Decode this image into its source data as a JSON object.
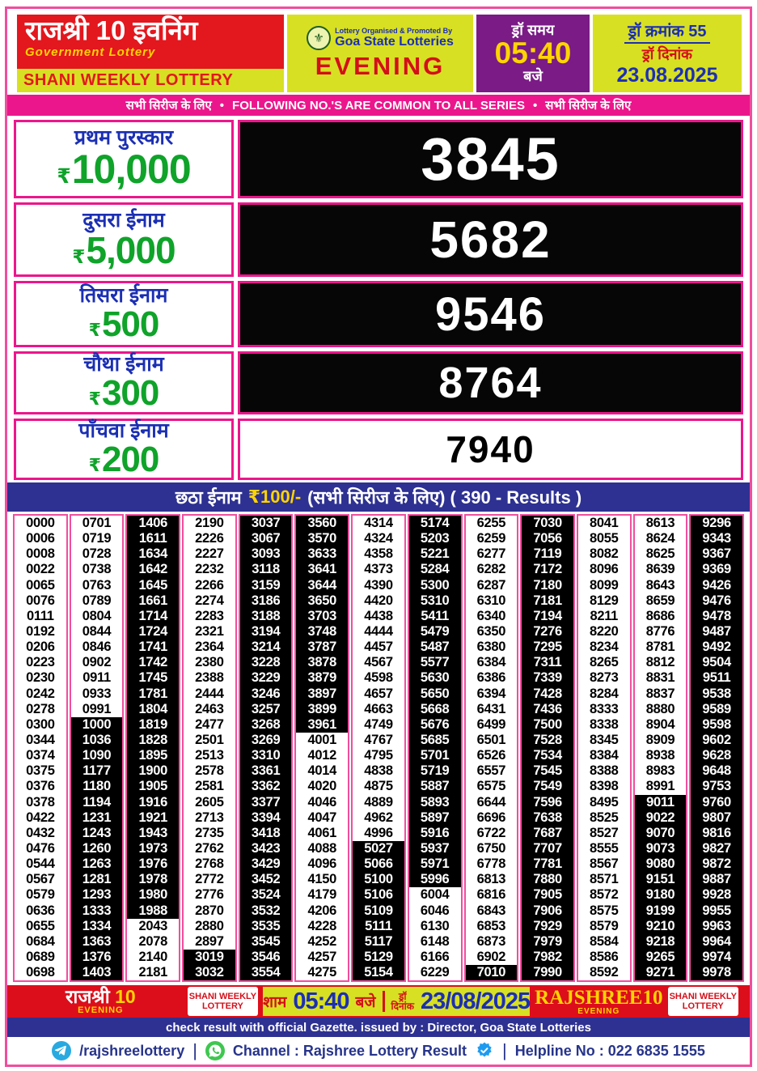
{
  "header": {
    "title": "राजश्री 10 इवनिंग",
    "subtitle": "Government Lottery",
    "weekly": "SHANI WEEKLY LOTTERY",
    "organiser_line1": "Lottery Organised & Promoted By",
    "organiser_line2": "Goa State Lotteries",
    "session": "EVENING",
    "draw_time_label": "ड्रॉ समय",
    "draw_time": "05:40",
    "draw_time_suffix": "बजे",
    "draw_no_line": "ड्रॉ क्रमांक 55",
    "draw_date_label": "ड्रॉ दिनांक",
    "draw_date": "23.08.2025"
  },
  "common_banner": {
    "left": "सभी सिरीज के लिए",
    "bullet": "•",
    "center": "FOLLOWING NO.'S ARE COMMON TO ALL SERIES",
    "right": "सभी सिरीज के लिए"
  },
  "prizes": [
    {
      "label": "प्रथम पुरस्कार",
      "currency": "₹",
      "amount": "10,000",
      "number": "3845"
    },
    {
      "label": "दुसरा ईनाम",
      "currency": "₹",
      "amount": "5,000",
      "number": "5682"
    },
    {
      "label": "तिसरा ईनाम",
      "currency": "₹",
      "amount": "500",
      "number": "9546"
    },
    {
      "label": "चौथा ईनाम",
      "currency": "₹",
      "amount": "300",
      "number": "8764"
    },
    {
      "label": "पाँचवा ईनाम",
      "currency": "₹",
      "amount": "200",
      "number": "7940"
    }
  ],
  "sixth_prize": {
    "label": "छठा ईनाम",
    "amount": "₹100/-",
    "note": "(सभी सिरीज के लिए) ( 390 - Results )"
  },
  "results_grid": {
    "columns": [
      [
        "0000",
        "0006",
        "0008",
        "0022",
        "0065",
        "0076",
        "0111",
        "0192",
        "0206",
        "0223",
        "0230",
        "0242",
        "0278",
        "0300",
        "0344",
        "0374",
        "0375",
        "0376",
        "0378",
        "0422",
        "0432",
        "0476",
        "0544",
        "0567",
        "0579",
        "0636",
        "0655",
        "0684",
        "0689",
        "0698"
      ],
      [
        "0701",
        "0719",
        "0728",
        "0738",
        "0763",
        "0789",
        "0804",
        "0844",
        "0846",
        "0902",
        "0911",
        "0933",
        "0991",
        "1000",
        "1036",
        "1090",
        "1177",
        "1180",
        "1194",
        "1231",
        "1243",
        "1260",
        "1263",
        "1281",
        "1293",
        "1333",
        "1334",
        "1363",
        "1376",
        "1403"
      ],
      [
        "1406",
        "1611",
        "1634",
        "1642",
        "1645",
        "1661",
        "1714",
        "1724",
        "1741",
        "1742",
        "1745",
        "1781",
        "1804",
        "1819",
        "1828",
        "1895",
        "1900",
        "1905",
        "1916",
        "1921",
        "1943",
        "1973",
        "1976",
        "1978",
        "1980",
        "1988",
        "2043",
        "2078",
        "2140",
        "2181"
      ],
      [
        "2190",
        "2226",
        "2227",
        "2232",
        "2266",
        "2274",
        "2283",
        "2321",
        "2364",
        "2380",
        "2388",
        "2444",
        "2463",
        "2477",
        "2501",
        "2513",
        "2578",
        "2581",
        "2605",
        "2713",
        "2735",
        "2762",
        "2768",
        "2772",
        "2776",
        "2870",
        "2880",
        "2897",
        "3019",
        "3032"
      ],
      [
        "3037",
        "3067",
        "3093",
        "3118",
        "3159",
        "3186",
        "3188",
        "3194",
        "3214",
        "3228",
        "3229",
        "3246",
        "3257",
        "3268",
        "3269",
        "3310",
        "3361",
        "3362",
        "3377",
        "3394",
        "3418",
        "3423",
        "3429",
        "3452",
        "3524",
        "3532",
        "3535",
        "3545",
        "3546",
        "3554"
      ],
      [
        "3560",
        "3570",
        "3633",
        "3641",
        "3644",
        "3650",
        "3703",
        "3748",
        "3787",
        "3878",
        "3879",
        "3897",
        "3899",
        "3961",
        "4001",
        "4012",
        "4014",
        "4020",
        "4046",
        "4047",
        "4061",
        "4088",
        "4096",
        "4150",
        "4179",
        "4206",
        "4228",
        "4252",
        "4257",
        "4275"
      ],
      [
        "4314",
        "4324",
        "4358",
        "4373",
        "4390",
        "4420",
        "4438",
        "4444",
        "4457",
        "4567",
        "4598",
        "4657",
        "4663",
        "4749",
        "4767",
        "4795",
        "4838",
        "4875",
        "4889",
        "4962",
        "4996",
        "5027",
        "5066",
        "5100",
        "5106",
        "5109",
        "5111",
        "5117",
        "5129",
        "5154"
      ],
      [
        "5174",
        "5203",
        "5221",
        "5284",
        "5300",
        "5310",
        "5411",
        "5479",
        "5487",
        "5577",
        "5630",
        "5650",
        "5668",
        "5676",
        "5685",
        "5701",
        "5719",
        "5887",
        "5893",
        "5897",
        "5916",
        "5937",
        "5971",
        "5996",
        "6004",
        "6046",
        "6130",
        "6148",
        "6166",
        "6229"
      ],
      [
        "6255",
        "6259",
        "6277",
        "6282",
        "6287",
        "6310",
        "6340",
        "6350",
        "6380",
        "6384",
        "6386",
        "6394",
        "6431",
        "6499",
        "6501",
        "6526",
        "6557",
        "6575",
        "6644",
        "6696",
        "6722",
        "6750",
        "6778",
        "6813",
        "6816",
        "6843",
        "6853",
        "6873",
        "6902",
        "7010"
      ],
      [
        "7030",
        "7056",
        "7119",
        "7172",
        "7180",
        "7181",
        "7194",
        "7276",
        "7295",
        "7311",
        "7339",
        "7428",
        "7436",
        "7500",
        "7528",
        "7534",
        "7545",
        "7549",
        "7596",
        "7638",
        "7687",
        "7707",
        "7781",
        "7880",
        "7905",
        "7906",
        "7929",
        "7979",
        "7982",
        "7990"
      ],
      [
        "8041",
        "8055",
        "8082",
        "8096",
        "8099",
        "8129",
        "8211",
        "8220",
        "8234",
        "8265",
        "8273",
        "8284",
        "8333",
        "8338",
        "8345",
        "8384",
        "8388",
        "8398",
        "8495",
        "8525",
        "8527",
        "8555",
        "8567",
        "8571",
        "8572",
        "8575",
        "8579",
        "8584",
        "8586",
        "8592"
      ],
      [
        "8613",
        "8624",
        "8625",
        "8639",
        "8643",
        "8659",
        "8686",
        "8776",
        "8781",
        "8812",
        "8831",
        "8837",
        "8880",
        "8904",
        "8909",
        "8938",
        "8983",
        "8991",
        "9011",
        "9022",
        "9070",
        "9073",
        "9080",
        "9151",
        "9180",
        "9199",
        "9210",
        "9218",
        "9265",
        "9271"
      ],
      [
        "9296",
        "9343",
        "9367",
        "9369",
        "9426",
        "9476",
        "9478",
        "9487",
        "9492",
        "9504",
        "9511",
        "9538",
        "9589",
        "9598",
        "9602",
        "9628",
        "9648",
        "9753",
        "9760",
        "9807",
        "9816",
        "9827",
        "9872",
        "9887",
        "9928",
        "9955",
        "9963",
        "9964",
        "9974",
        "9978"
      ]
    ]
  },
  "footer": {
    "brand_left_name": "राजश्री ",
    "brand_left_number": "10",
    "brand_left_session": "EVENING",
    "weekly_left": "SHANI WEEKLY LOTTERY",
    "time_prefix": "शाम",
    "time": "05:40",
    "time_suffix": "बजे",
    "date_label_line1": "ड्रॉ",
    "date_label_line2": "दिनांक",
    "date": "23/08/2025",
    "brand_right_name": "RAJSHREE10",
    "brand_right_session": "EVENING",
    "weekly_right": "SHANI WEEKLY LOTTERY",
    "gazette_note": "check result with official Gazette. issued by : Director, Goa State Lotteries",
    "telegram_handle": "/rajshreelottery",
    "channel_label": "Channel : Rajshree Lottery Result",
    "helpline": "Helpline No : 022 6835 1555"
  },
  "icons": {
    "goa-emblem-icon": "state emblem seal",
    "telegram-icon": "blue circle paper plane",
    "whatsapp-icon": "green circle phone",
    "verified-icon": "blue check badge"
  },
  "colors": {
    "accent_pink": "#ec168c",
    "frame_pink": "#f04e9e",
    "red": "#e3171e",
    "lime": "#d8e023",
    "purple": "#7a1b86",
    "navy": "#2e3191",
    "label_blue": "#1b2fb3",
    "amount_green": "#0fa32a",
    "yellow": "#ffd400",
    "inverted_cell": "#000000"
  }
}
